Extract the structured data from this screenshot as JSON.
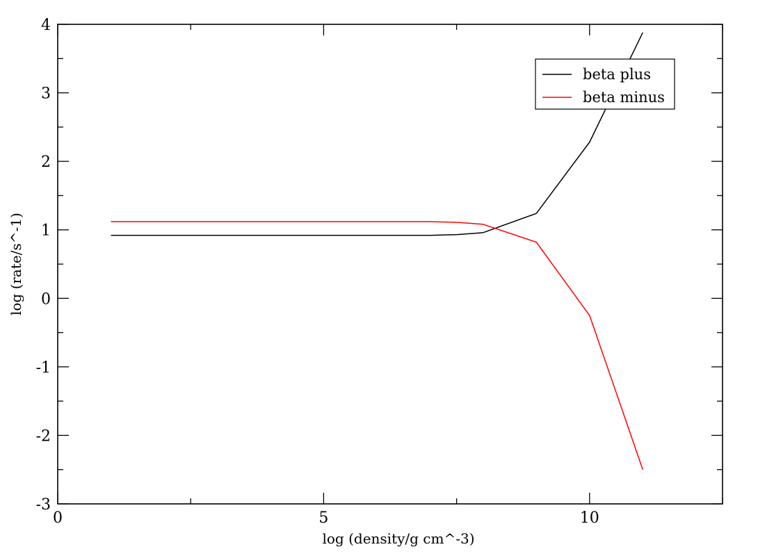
{
  "chart_data": {
    "type": "line",
    "title": "",
    "xlabel": "log (density/g cm^-3)",
    "ylabel": "log (rate/s^-1)",
    "xlim": [
      0,
      12.5
    ],
    "ylim": [
      -3,
      4
    ],
    "x_major_ticks": [
      0,
      5,
      10
    ],
    "x_minor_ticks": [
      2.5,
      7.5,
      12.5
    ],
    "y_major_ticks": [
      -3,
      -2,
      -1,
      0,
      1,
      2,
      3,
      4
    ],
    "y_minor_ticks": [
      -2.5,
      -1.5,
      -0.5,
      0.5,
      1.5,
      2.5,
      3.5
    ],
    "x_tick_labels": [
      "0",
      "5",
      "10"
    ],
    "y_tick_labels": [
      "-3",
      "-2",
      "-1",
      "0",
      "1",
      "2",
      "3",
      "4"
    ],
    "grid": false,
    "legend_position": "top-right",
    "series": [
      {
        "name": "beta plus",
        "color": "#000000",
        "x": [
          1,
          2,
          3,
          4,
          5,
          6,
          7,
          7.5,
          8,
          9,
          10,
          11
        ],
        "y": [
          0.92,
          0.92,
          0.92,
          0.92,
          0.92,
          0.92,
          0.92,
          0.93,
          0.96,
          1.24,
          2.28,
          3.88
        ]
      },
      {
        "name": "beta minus",
        "color": "#ff0000",
        "x": [
          1,
          2,
          3,
          4,
          5,
          6,
          7,
          7.5,
          8,
          9,
          10,
          11
        ],
        "y": [
          1.12,
          1.12,
          1.12,
          1.12,
          1.12,
          1.12,
          1.12,
          1.11,
          1.08,
          0.82,
          -0.25,
          -2.5
        ]
      }
    ]
  }
}
